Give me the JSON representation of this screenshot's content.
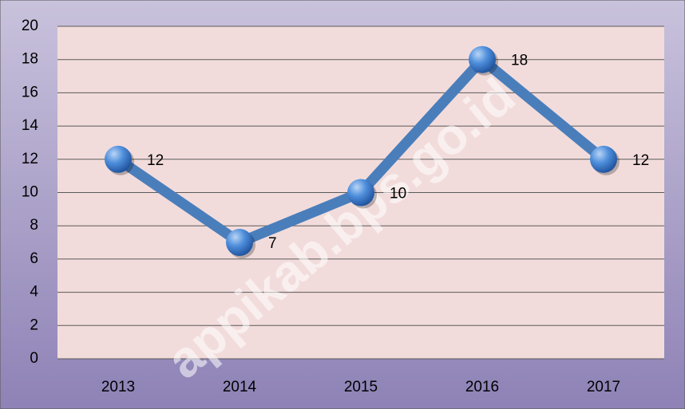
{
  "chart_data": {
    "type": "line",
    "categories": [
      "2013",
      "2014",
      "2015",
      "2016",
      "2017"
    ],
    "values": [
      12,
      7,
      10,
      18,
      12
    ],
    "color": "#4a7ebb",
    "ylim": [
      0,
      20
    ],
    "yticks": [
      0,
      2,
      4,
      6,
      8,
      10,
      12,
      14,
      16,
      18,
      20
    ],
    "grid": true,
    "watermark": "appikab.bps.go.id"
  }
}
